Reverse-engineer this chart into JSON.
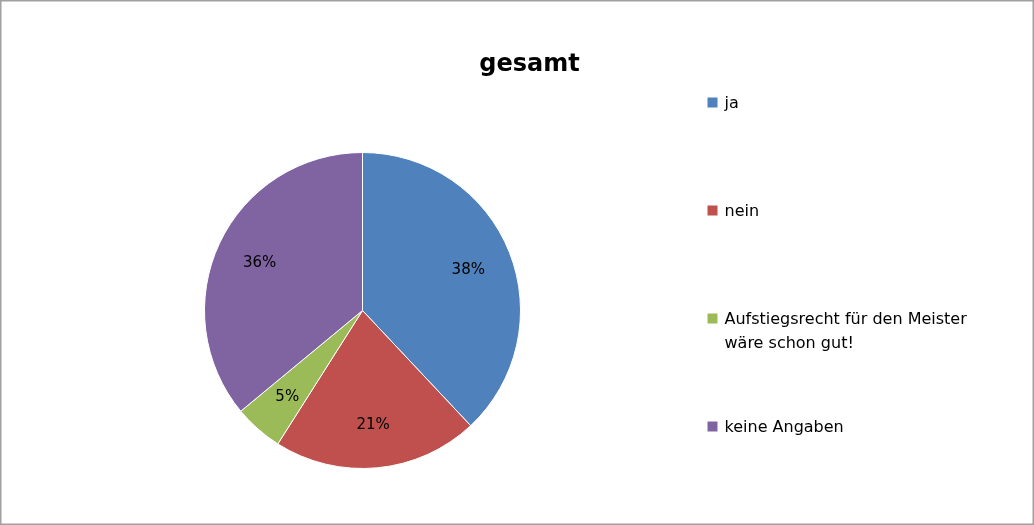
{
  "chart_data": {
    "type": "pie",
    "title": "gesamt",
    "categories": [
      "ja",
      "nein",
      "Aufstiegsrecht für den Meister wäre schon gut!",
      "keine Angaben"
    ],
    "values": [
      38,
      21,
      5,
      36
    ],
    "value_labels": [
      "38%",
      "21%",
      "5%",
      "36%"
    ],
    "colors": [
      "#4f81bd",
      "#c0504d",
      "#9bbb59",
      "#8064a2"
    ],
    "legend": "right"
  }
}
